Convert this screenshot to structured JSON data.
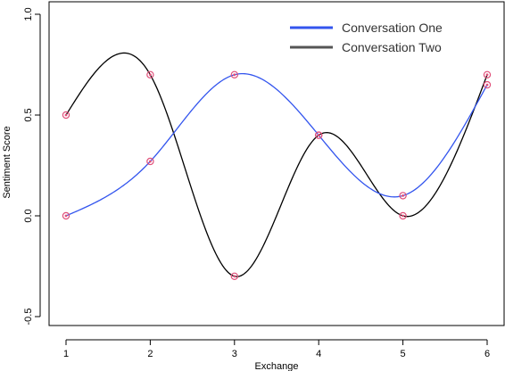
{
  "chart_data": {
    "type": "line",
    "xlabel": "Exchange",
    "ylabel": "Sentiment Score",
    "x": [
      1,
      2,
      3,
      4,
      5,
      6
    ],
    "xlim": [
      1,
      6
    ],
    "ylim": [
      -0.5,
      1.0
    ],
    "x_ticks": [
      "1",
      "2",
      "3",
      "4",
      "5",
      "6"
    ],
    "y_ticks": [
      "-0.5",
      "0.0",
      "0.5",
      "1.0"
    ],
    "grid": false,
    "legend_position": "top-right",
    "series": [
      {
        "name": "Conversation One",
        "color": "#3355ee",
        "values": [
          0.0,
          0.27,
          0.7,
          0.4,
          0.1,
          0.65
        ]
      },
      {
        "name": "Conversation Two",
        "color": "#000000",
        "values": [
          0.5,
          0.7,
          -0.3,
          0.4,
          0.0,
          0.7
        ]
      }
    ],
    "marker_color": "#e0507a"
  }
}
